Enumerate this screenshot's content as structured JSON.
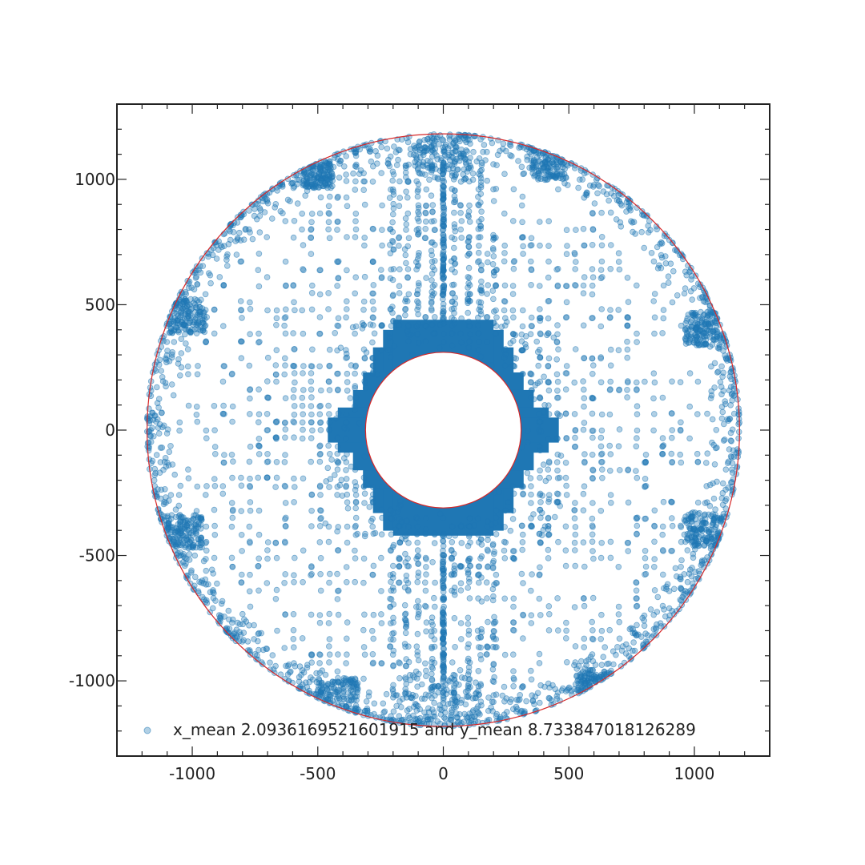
{
  "chart_data": {
    "type": "scatter",
    "title": "",
    "xlabel": "",
    "ylabel": "",
    "xlim": [
      -1300,
      1300
    ],
    "ylim": [
      -1300,
      1300
    ],
    "grid": false,
    "aspect": "equal",
    "x_ticks": [
      -1000,
      -500,
      0,
      500,
      1000
    ],
    "y_ticks": [
      1000,
      500,
      0,
      -500,
      -1000
    ],
    "x_tick_labels": [
      "-1000",
      "-500",
      "0",
      "500",
      "1000"
    ],
    "y_tick_labels": [
      "1000",
      "500",
      "0",
      "-500",
      "-1000"
    ],
    "legend": {
      "position": "bottom-left",
      "label": "x_mean 2.0936169521601915 and y_mean 8.733847018126289"
    },
    "colors": {
      "points": "#1f77b4",
      "circles": "#d62728",
      "frame": "#222222"
    },
    "circles": [
      {
        "cx": 0,
        "cy": 0,
        "r": 1180
      },
      {
        "cx": 0,
        "cy": 0,
        "r": 310
      }
    ],
    "series": [
      {
        "name": "x_mean 2.0936169521601915 and y_mean 8.733847018126289",
        "marker_alpha": 0.35,
        "regions": [
          {
            "shape": "dense_rect",
            "x_range": [
              -280,
              280
            ],
            "y_range": [
              -400,
              400
            ]
          },
          {
            "shape": "dense_rect",
            "x_range": [
              -460,
              460
            ],
            "y_range": [
              -80,
              80
            ]
          },
          {
            "shape": "outer_ring",
            "r_range": [
              1080,
              1185
            ]
          },
          {
            "shape": "vertical_strip",
            "x_range": [
              -15,
              15
            ],
            "y_range": [
              -1100,
              1100
            ]
          },
          {
            "shape": "cluster",
            "x_range": [
              -1100,
              -950
            ],
            "y_range": [
              380,
              530
            ]
          },
          {
            "shape": "cluster",
            "x_range": [
              -1110,
              -960
            ],
            "y_range": [
              -480,
              -330
            ]
          },
          {
            "shape": "cluster",
            "x_range": [
              960,
              1110
            ],
            "y_range": [
              330,
              480
            ]
          },
          {
            "shape": "cluster",
            "x_range": [
              960,
              1110
            ],
            "y_range": [
              -470,
              -320
            ]
          },
          {
            "shape": "cluster",
            "x_range": [
              -120,
              120
            ],
            "y_range": [
              1030,
              1180
            ]
          },
          {
            "shape": "cluster",
            "x_range": [
              -150,
              150
            ],
            "y_range": [
              -1180,
              -1040
            ]
          },
          {
            "shape": "sparse_annulus",
            "r_range": [
              350,
              1080
            ]
          }
        ]
      }
    ]
  }
}
